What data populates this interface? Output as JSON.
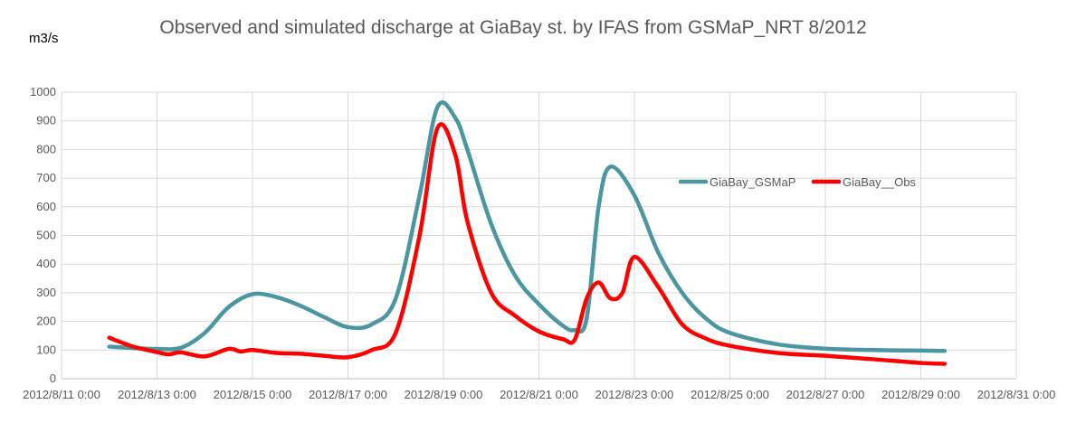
{
  "chart_data": {
    "type": "line",
    "title": "Observed and simulated discharge at GiaBay st. by IFAS from GSMaP_NRT 8/2012",
    "ylabel": "m3/s",
    "xlabel": "",
    "ylim": [
      0,
      1000
    ],
    "yticks": [
      0,
      100,
      200,
      300,
      400,
      500,
      600,
      700,
      800,
      900,
      1000
    ],
    "xlim": [
      "2012-08-11 00:00",
      "2012-08-31 00:00"
    ],
    "xtick_labels": [
      "2012/8/11 0:00",
      "2012/8/13 0:00",
      "2012/8/15 0:00",
      "2012/8/17 0:00",
      "2012/8/19 0:00",
      "2012/8/21 0:00",
      "2012/8/23 0:00",
      "2012/8/25 0:00",
      "2012/8/27 0:00",
      "2012/8/29 0:00",
      "2012/8/31 0:00"
    ],
    "grid": true,
    "legend_position": "right",
    "series": [
      {
        "name": "GiaBay_GSMaP",
        "color": "#4a97a1",
        "x": [
          "2012-08-12 00:00",
          "2012-08-12 12:00",
          "2012-08-13 00:00",
          "2012-08-13 12:00",
          "2012-08-14 00:00",
          "2012-08-14 12:00",
          "2012-08-15 00:00",
          "2012-08-15 12:00",
          "2012-08-16 00:00",
          "2012-08-16 12:00",
          "2012-08-17 00:00",
          "2012-08-17 12:00",
          "2012-08-18 00:00",
          "2012-08-18 12:00",
          "2012-08-18 21:00",
          "2012-08-19 06:00",
          "2012-08-19 12:00",
          "2012-08-20 00:00",
          "2012-08-20 12:00",
          "2012-08-21 00:00",
          "2012-08-21 12:00",
          "2012-08-21 18:00",
          "2012-08-22 00:00",
          "2012-08-22 06:00",
          "2012-08-22 12:00",
          "2012-08-23 00:00",
          "2012-08-23 12:00",
          "2012-08-24 00:00",
          "2012-08-24 12:00",
          "2012-08-25 00:00",
          "2012-08-26 00:00",
          "2012-08-27 00:00",
          "2012-08-28 00:00",
          "2012-08-29 00:00",
          "2012-08-29 12:00"
        ],
        "values": [
          112,
          107,
          104,
          108,
          160,
          250,
          295,
          285,
          255,
          215,
          180,
          190,
          280,
          640,
          948,
          910,
          800,
          540,
          360,
          260,
          185,
          170,
          210,
          600,
          740,
          640,
          440,
          300,
          210,
          160,
          120,
          105,
          100,
          98,
          97
        ]
      },
      {
        "name": "GiaBay__Obs",
        "color": "#ff0000",
        "x": [
          "2012-08-12 00:00",
          "2012-08-12 12:00",
          "2012-08-13 00:00",
          "2012-08-13 06:00",
          "2012-08-13 12:00",
          "2012-08-14 00:00",
          "2012-08-14 12:00",
          "2012-08-14 18:00",
          "2012-08-15 00:00",
          "2012-08-15 12:00",
          "2012-08-16 00:00",
          "2012-08-16 12:00",
          "2012-08-17 00:00",
          "2012-08-17 12:00",
          "2012-08-18 00:00",
          "2012-08-18 12:00",
          "2012-08-18 21:00",
          "2012-08-19 06:00",
          "2012-08-19 12:00",
          "2012-08-20 00:00",
          "2012-08-20 12:00",
          "2012-08-21 00:00",
          "2012-08-21 12:00",
          "2012-08-21 18:00",
          "2012-08-22 00:00",
          "2012-08-22 06:00",
          "2012-08-22 12:00",
          "2012-08-22 18:00",
          "2012-08-23 00:00",
          "2012-08-23 12:00",
          "2012-08-24 00:00",
          "2012-08-24 12:00",
          "2012-08-25 00:00",
          "2012-08-26 00:00",
          "2012-08-27 00:00",
          "2012-08-28 00:00",
          "2012-08-29 00:00",
          "2012-08-29 12:00"
        ],
        "values": [
          143,
          112,
          93,
          85,
          92,
          78,
          104,
          95,
          100,
          90,
          87,
          80,
          75,
          100,
          160,
          500,
          875,
          780,
          550,
          300,
          220,
          165,
          138,
          136,
          280,
          336,
          280,
          300,
          425,
          320,
          190,
          140,
          115,
          90,
          80,
          68,
          55,
          52
        ]
      }
    ]
  }
}
